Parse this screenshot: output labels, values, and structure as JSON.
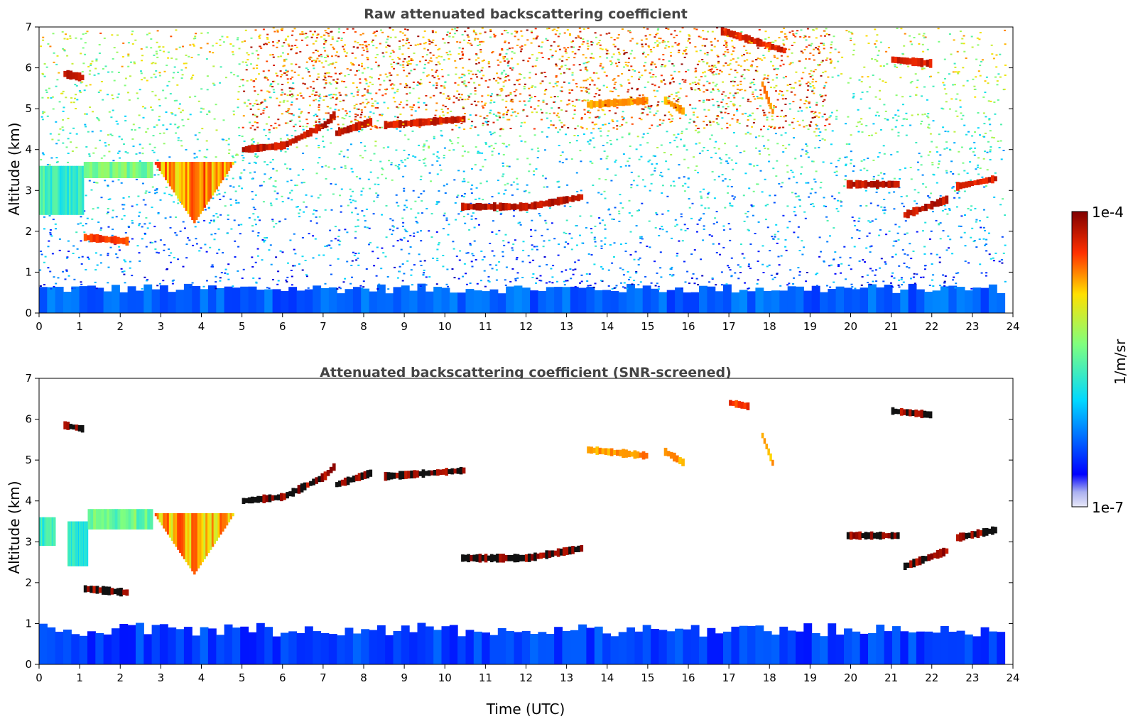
{
  "figure": {
    "panels": [
      {
        "title": "Raw attenuated backscattering coefficient",
        "ylabel": "Altitude (km)",
        "xlabel": ""
      },
      {
        "title": "Attenuated backscattering coefficient (SNR-screened)",
        "ylabel": "Altitude (km)",
        "xlabel": "Time (UTC)"
      }
    ],
    "colorbar": {
      "label": "1/m/sr",
      "max_label": "1e-4",
      "min_label": "1e-7"
    }
  },
  "chart_data": [
    {
      "type": "heatmap",
      "title": "Raw attenuated backscattering coefficient",
      "xlabel": "",
      "ylabel": "Altitude (km)",
      "xlim": [
        0,
        24
      ],
      "ylim": [
        0,
        7
      ],
      "x_ticks": [
        "0",
        "1",
        "2",
        "3",
        "4",
        "5",
        "6",
        "7",
        "8",
        "9",
        "10",
        "11",
        "12",
        "13",
        "14",
        "15",
        "16",
        "17",
        "18",
        "19",
        "20",
        "21",
        "22",
        "23",
        "24"
      ],
      "y_ticks": [
        "0",
        "1",
        "2",
        "3",
        "4",
        "5",
        "6",
        "7"
      ],
      "colorscale": "jet (log)",
      "color_range_labels": [
        "1e-7",
        "1e-4"
      ],
      "colorbar_label": "1/m/sr",
      "features": [
        {
          "kind": "boundary_layer",
          "t_start": 0,
          "t_end": 23.8,
          "top_km": 0.6,
          "intensity": 0.22
        },
        {
          "kind": "noisy_background",
          "t_start": 0,
          "t_end": 23.8,
          "low_km": 0.6,
          "high_km": 7.0
        },
        {
          "kind": "aerosol_layer",
          "t_start": 0,
          "t_end": 1.1,
          "base_km": 2.4,
          "top_km": 3.6,
          "intensity": 0.45
        },
        {
          "kind": "aerosol_layer",
          "t_start": 1.1,
          "t_end": 2.8,
          "base_km": 3.3,
          "top_km": 3.7,
          "intensity": 0.55
        },
        {
          "kind": "cloud_v",
          "t_start": 2.8,
          "t_min": 3.8,
          "t_end": 4.8,
          "top_km": 3.7,
          "bottom_km": 2.2,
          "intensity": 0.78
        },
        {
          "kind": "cloud",
          "t": [
            5.0,
            6.0,
            7.0,
            7.3
          ],
          "alt": [
            4.0,
            4.1,
            4.6,
            4.9
          ],
          "intensity": 0.97
        },
        {
          "kind": "cloud",
          "t": [
            7.3,
            8.2
          ],
          "alt": [
            4.4,
            4.7
          ],
          "intensity": 0.97
        },
        {
          "kind": "cloud",
          "t": [
            8.5,
            10.5
          ],
          "alt": [
            4.6,
            4.75
          ],
          "intensity": 0.95
        },
        {
          "kind": "cloud",
          "t": [
            10.4,
            12.0,
            13.4
          ],
          "alt": [
            2.6,
            2.6,
            2.85
          ],
          "intensity": 0.97
        },
        {
          "kind": "cloud",
          "t": [
            0.6,
            1.1
          ],
          "alt": [
            5.85,
            5.75
          ],
          "intensity": 0.95
        },
        {
          "kind": "cloud",
          "t": [
            1.1,
            2.2
          ],
          "alt": [
            1.85,
            1.75
          ],
          "intensity": 0.9
        },
        {
          "kind": "cloud",
          "t": [
            13.5,
            15.0
          ],
          "alt": [
            5.1,
            5.2
          ],
          "intensity": 0.82
        },
        {
          "kind": "cloud",
          "t": [
            15.4,
            15.9
          ],
          "alt": [
            5.2,
            4.9
          ],
          "intensity": 0.82
        },
        {
          "kind": "cloud",
          "t": [
            16.8,
            18.4
          ],
          "alt": [
            6.9,
            6.4
          ],
          "intensity": 0.93
        },
        {
          "kind": "cloud",
          "t": [
            17.8,
            18.1
          ],
          "alt": [
            5.6,
            4.8
          ],
          "intensity": 0.82
        },
        {
          "kind": "cloud",
          "t": [
            19.9,
            21.2
          ],
          "alt": [
            3.15,
            3.15
          ],
          "intensity": 0.97
        },
        {
          "kind": "cloud",
          "t": [
            21.3,
            22.4
          ],
          "alt": [
            2.4,
            2.8
          ],
          "intensity": 0.97
        },
        {
          "kind": "cloud",
          "t": [
            22.6,
            23.6
          ],
          "alt": [
            3.1,
            3.3
          ],
          "intensity": 0.95
        },
        {
          "kind": "cloud",
          "t": [
            21.0,
            22.0
          ],
          "alt": [
            6.2,
            6.1
          ],
          "intensity": 0.95
        },
        {
          "kind": "noisy_upper_warm",
          "t_start": 5.0,
          "t_end": 19.5,
          "low_km": 4.5,
          "high_km": 7.0
        }
      ]
    },
    {
      "type": "heatmap",
      "title": "Attenuated backscattering coefficient (SNR-screened)",
      "xlabel": "Time (UTC)",
      "ylabel": "Altitude (km)",
      "xlim": [
        0,
        24
      ],
      "ylim": [
        0,
        7
      ],
      "x_ticks": [
        "0",
        "1",
        "2",
        "3",
        "4",
        "5",
        "6",
        "7",
        "8",
        "9",
        "10",
        "11",
        "12",
        "13",
        "14",
        "15",
        "16",
        "17",
        "18",
        "19",
        "20",
        "21",
        "22",
        "23",
        "24"
      ],
      "y_ticks": [
        "0",
        "1",
        "2",
        "3",
        "4",
        "5",
        "6",
        "7"
      ],
      "colorscale": "jet (log)",
      "color_range_labels": [
        "1e-7",
        "1e-4"
      ],
      "colorbar_label": "1/m/sr",
      "features": [
        {
          "kind": "boundary_layer",
          "t_start": 0,
          "t_end": 23.8,
          "top_km": 0.85,
          "intensity": 0.18
        },
        {
          "kind": "aerosol_layer",
          "t_start": 0,
          "t_end": 0.4,
          "base_km": 2.9,
          "top_km": 3.6,
          "intensity": 0.45
        },
        {
          "kind": "aerosol_layer",
          "t_start": 0.7,
          "t_end": 1.2,
          "base_km": 2.4,
          "top_km": 3.5,
          "intensity": 0.42
        },
        {
          "kind": "aerosol_layer",
          "t_start": 1.2,
          "t_end": 2.8,
          "base_km": 3.3,
          "top_km": 3.8,
          "intensity": 0.52
        },
        {
          "kind": "cloud_v",
          "t_start": 2.8,
          "t_min": 3.8,
          "t_end": 4.8,
          "top_km": 3.7,
          "bottom_km": 2.2,
          "intensity": 0.75
        },
        {
          "kind": "cloud",
          "t": [
            5.0,
            6.0,
            7.0,
            7.3
          ],
          "alt": [
            4.0,
            4.1,
            4.6,
            4.9
          ],
          "intensity": 1.0
        },
        {
          "kind": "cloud",
          "t": [
            7.3,
            8.2
          ],
          "alt": [
            4.4,
            4.7
          ],
          "intensity": 1.0
        },
        {
          "kind": "cloud",
          "t": [
            8.5,
            10.5
          ],
          "alt": [
            4.6,
            4.75
          ],
          "intensity": 1.0
        },
        {
          "kind": "cloud",
          "t": [
            10.4,
            12.0,
            13.4
          ],
          "alt": [
            2.6,
            2.6,
            2.85
          ],
          "intensity": 1.0
        },
        {
          "kind": "cloud",
          "t": [
            0.6,
            1.1
          ],
          "alt": [
            5.85,
            5.75
          ],
          "intensity": 1.0
        },
        {
          "kind": "cloud",
          "t": [
            1.1,
            2.2
          ],
          "alt": [
            1.85,
            1.75
          ],
          "intensity": 1.0
        },
        {
          "kind": "cloud",
          "t": [
            13.5,
            15.0
          ],
          "alt": [
            5.25,
            5.1
          ],
          "intensity": 0.82
        },
        {
          "kind": "cloud",
          "t": [
            15.4,
            15.9
          ],
          "alt": [
            5.2,
            4.9
          ],
          "intensity": 0.82
        },
        {
          "kind": "cloud",
          "t": [
            17.0,
            17.5
          ],
          "alt": [
            6.4,
            6.3
          ],
          "intensity": 0.9
        },
        {
          "kind": "cloud",
          "t": [
            17.8,
            18.1
          ],
          "alt": [
            5.6,
            4.8
          ],
          "intensity": 0.8
        },
        {
          "kind": "cloud",
          "t": [
            19.9,
            21.2
          ],
          "alt": [
            3.15,
            3.15
          ],
          "intensity": 1.0
        },
        {
          "kind": "cloud",
          "t": [
            21.3,
            22.4
          ],
          "alt": [
            2.4,
            2.8
          ],
          "intensity": 1.0
        },
        {
          "kind": "cloud",
          "t": [
            22.6,
            23.6
          ],
          "alt": [
            3.1,
            3.3
          ],
          "intensity": 1.0
        },
        {
          "kind": "cloud",
          "t": [
            21.0,
            22.0
          ],
          "alt": [
            6.2,
            6.1
          ],
          "intensity": 1.0
        }
      ]
    }
  ]
}
